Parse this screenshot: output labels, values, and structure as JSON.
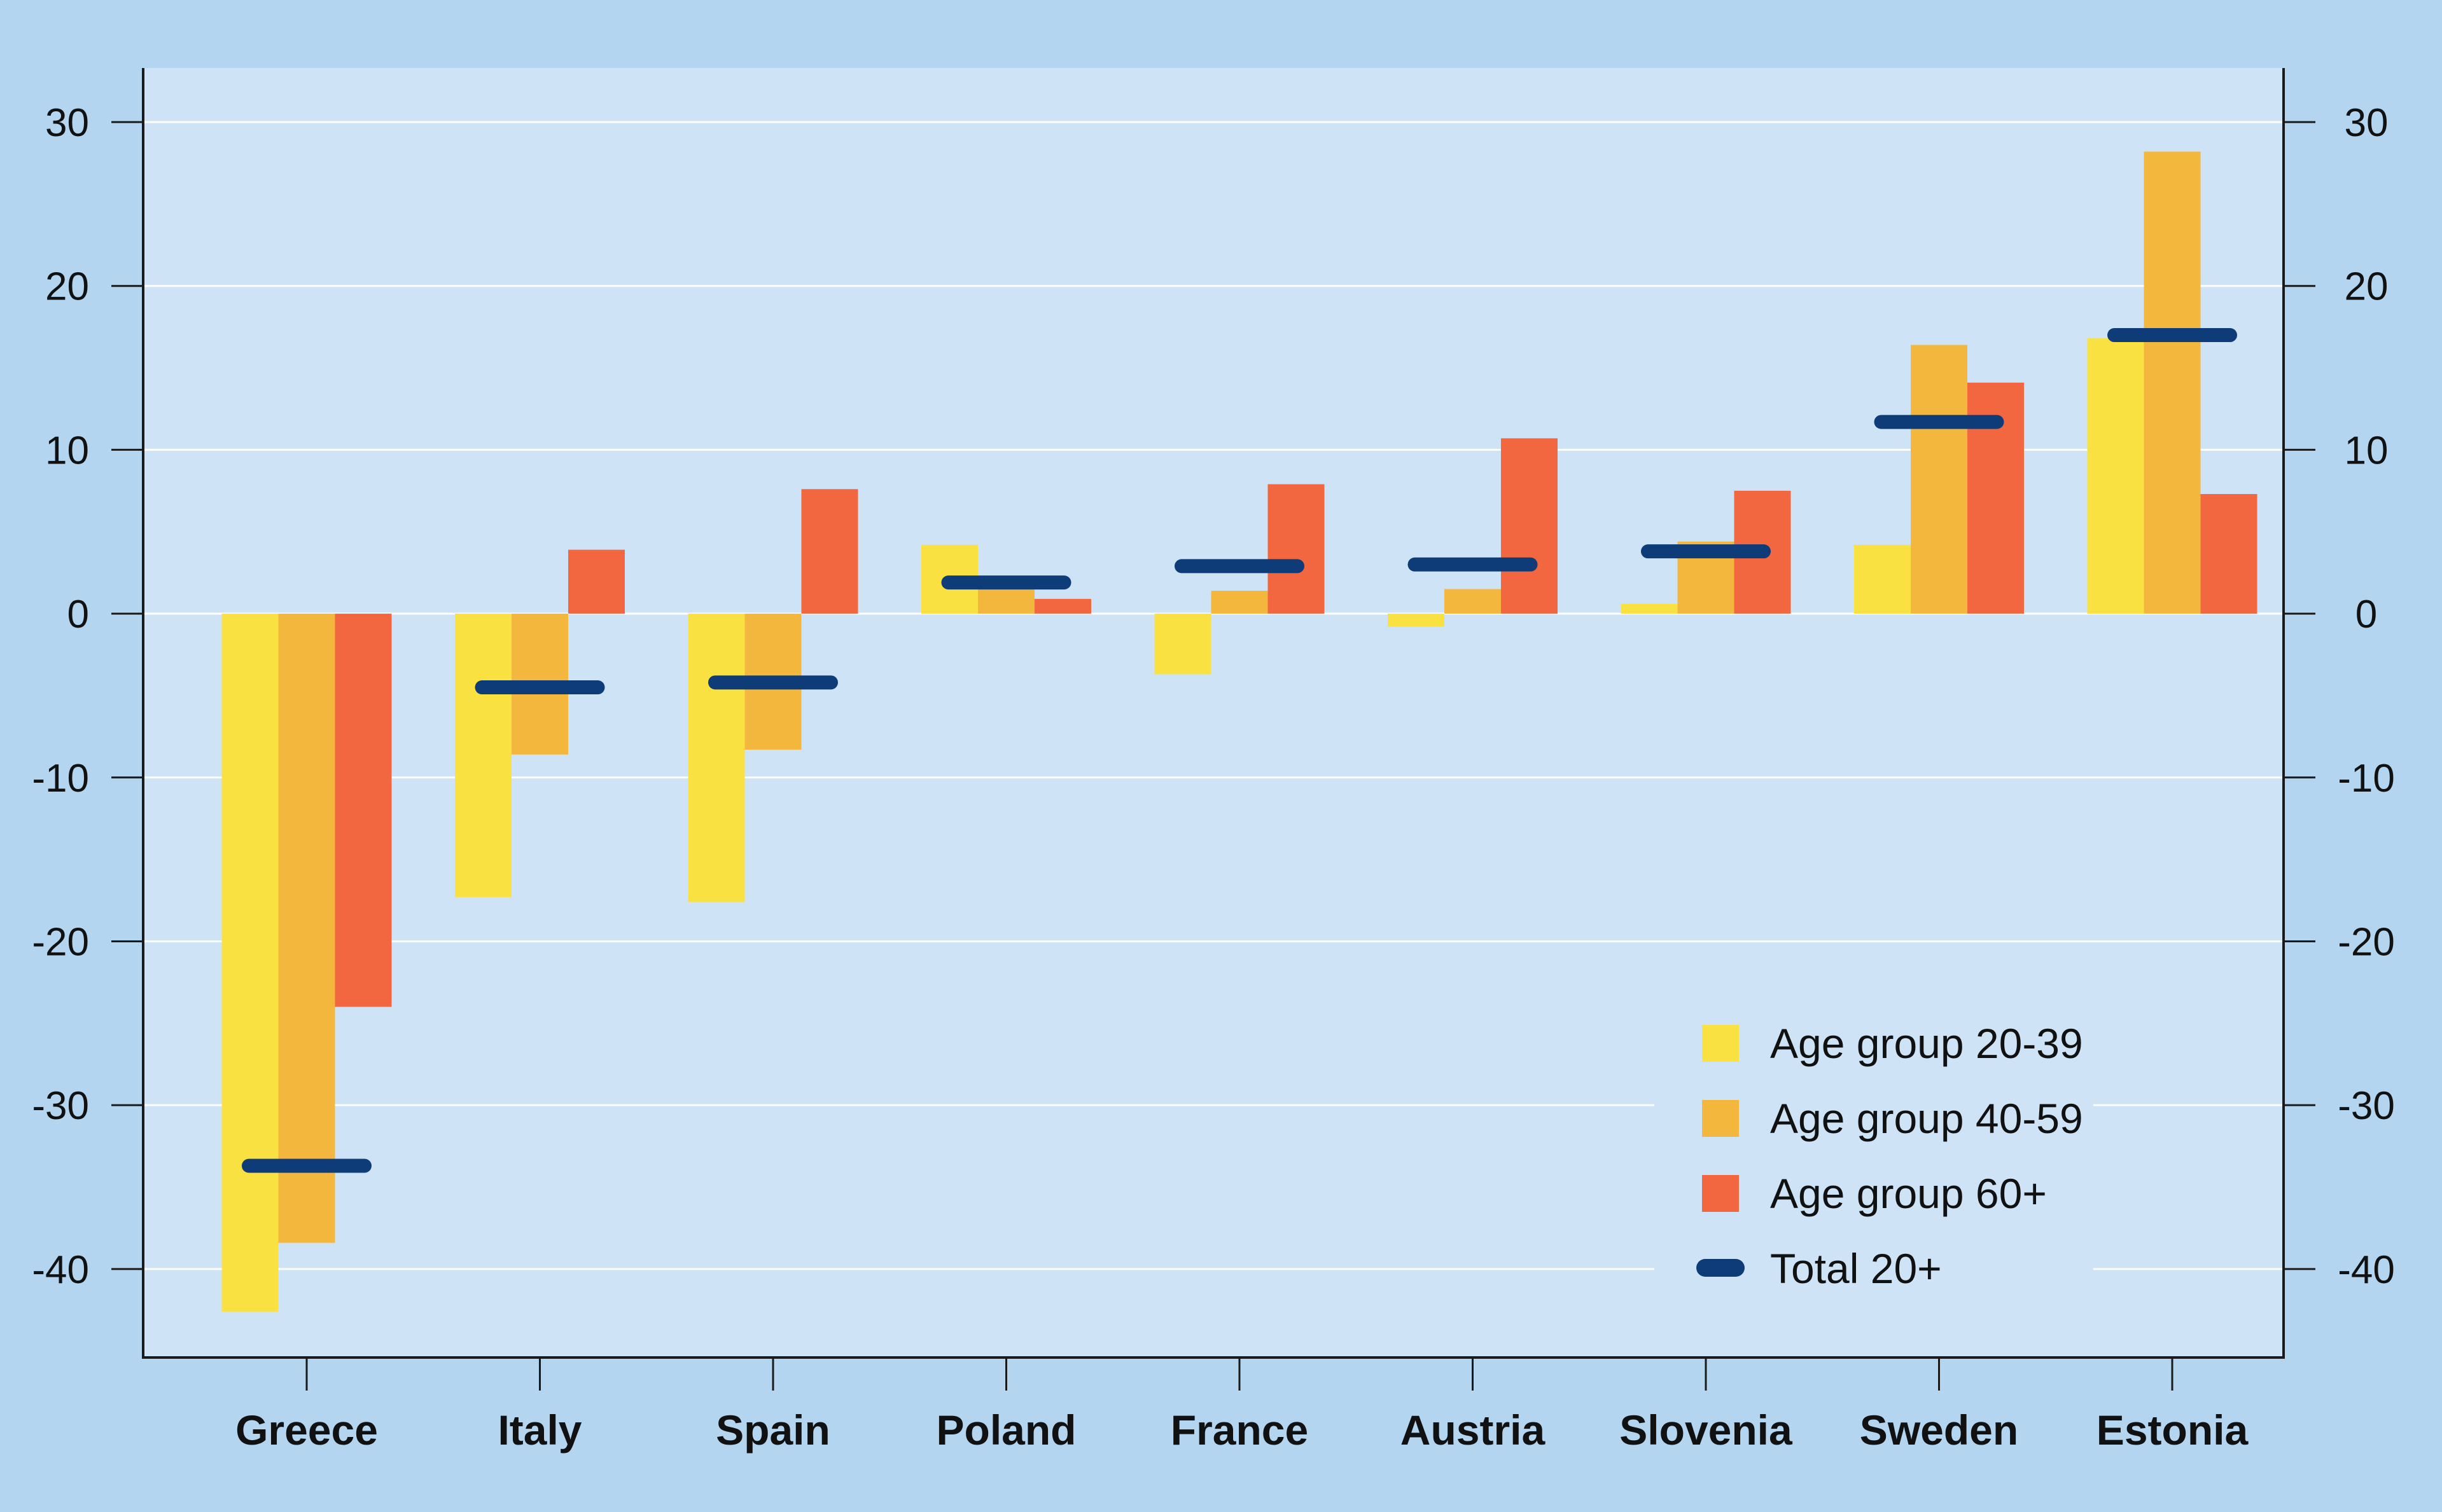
{
  "chart_data": {
    "type": "bar",
    "title": "",
    "xlabel": "",
    "ylabel": "",
    "ylim": [
      -45.4,
      33.3
    ],
    "yticks": [
      30,
      20,
      10,
      0,
      -10,
      -20,
      -30,
      -40
    ],
    "ytick_labels": [
      "30",
      "20",
      "10",
      "0",
      "-10",
      "-20",
      "-30",
      "-40"
    ],
    "grid": true,
    "legend_position": "bottom-right",
    "categories": [
      "Greece",
      "Italy",
      "Spain",
      "Poland",
      "France",
      "Austria",
      "Slovenia",
      "Sweden",
      "Estonia"
    ],
    "series": [
      {
        "name": "Age group 20-39",
        "kind": "bar",
        "color": "#fae142",
        "values": [
          -42.6,
          -17.3,
          -17.6,
          4.2,
          -3.7,
          -0.8,
          0.6,
          4.2,
          16.8
        ]
      },
      {
        "name": "Age group 40-59",
        "kind": "bar",
        "color": "#f4b73e",
        "values": [
          -38.4,
          -8.6,
          -8.3,
          1.7,
          1.4,
          1.5,
          4.4,
          16.4,
          28.2
        ]
      },
      {
        "name": "Age group 60+",
        "kind": "bar",
        "color": "#f26640",
        "values": [
          -24.0,
          3.9,
          7.6,
          0.9,
          7.9,
          10.7,
          7.5,
          14.1,
          7.3
        ]
      },
      {
        "name": "Total 20+",
        "kind": "marker",
        "color": "#0d3c78",
        "values": [
          -33.7,
          -4.5,
          -4.2,
          1.9,
          2.9,
          3.0,
          3.8,
          11.7,
          17.0
        ]
      }
    ]
  },
  "colors": {
    "page_background": "#b3d5ef",
    "plot_background": "#cfe3f6",
    "gridline": "#ffffff",
    "axis": "#1a1a1a"
  }
}
